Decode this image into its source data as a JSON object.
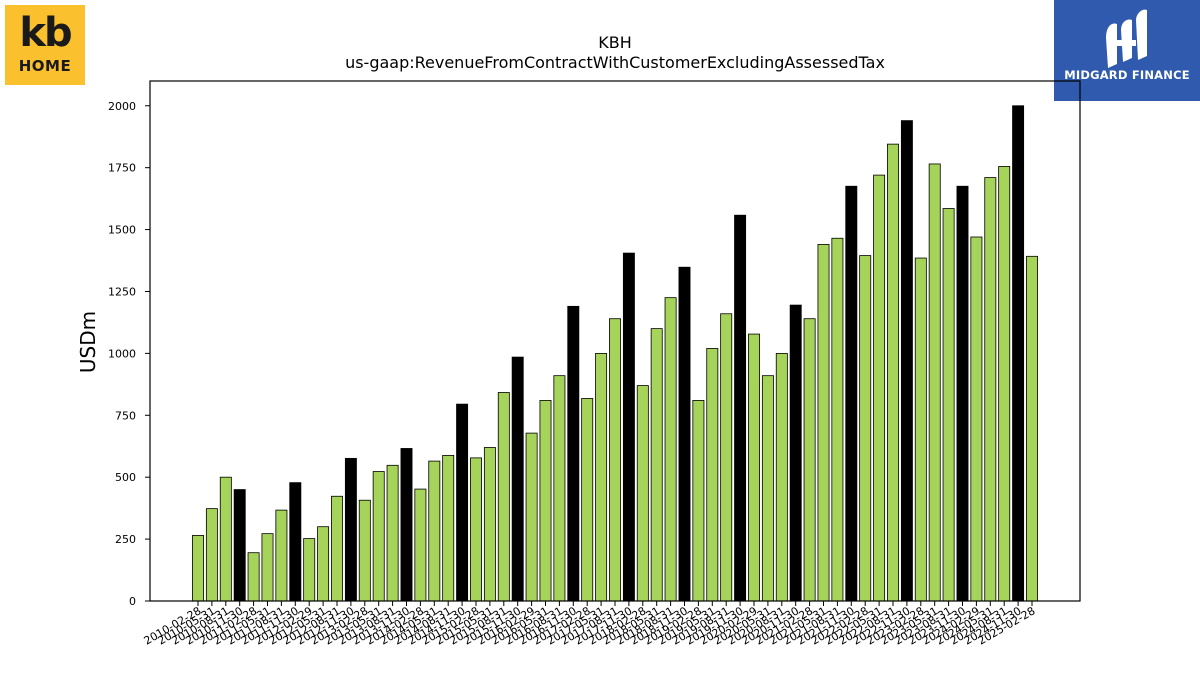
{
  "logos": {
    "left_top": "kb",
    "left_bottom": "HOME",
    "right_label": "MIDGARD FINANCE"
  },
  "colors": {
    "bar_green": "#a6d45a",
    "bar_black": "#000000",
    "kb_logo_bg": "#fbc02d",
    "midgard_bg": "#2f5aad"
  },
  "chart_data": {
    "type": "bar",
    "title": "KBH",
    "subtitle": "us-gaap:RevenueFromContractWithCustomerExcludingAssessedTax",
    "ylabel": "USDm",
    "xlabel": "",
    "ylim": [
      0,
      2100
    ],
    "yticks": [
      0,
      250,
      500,
      750,
      1000,
      1250,
      1500,
      1750,
      2000
    ],
    "grid": false,
    "categories": [
      "2010-02-28",
      "2010-05-31",
      "2010-08-31",
      "2010-11-30",
      "2011-02-28",
      "2011-05-31",
      "2011-08-31",
      "2011-11-30",
      "2012-02-29",
      "2012-05-31",
      "2012-08-31",
      "2012-11-30",
      "2013-02-28",
      "2013-05-31",
      "2013-08-31",
      "2013-11-30",
      "2014-02-28",
      "2014-05-31",
      "2014-08-31",
      "2014-11-30",
      "2015-02-28",
      "2015-05-31",
      "2015-08-31",
      "2015-11-30",
      "2016-02-29",
      "2016-05-31",
      "2016-08-31",
      "2016-11-30",
      "2017-02-28",
      "2017-05-31",
      "2017-08-31",
      "2017-11-30",
      "2018-02-28",
      "2018-05-31",
      "2018-08-31",
      "2018-11-30",
      "2019-02-28",
      "2019-05-31",
      "2019-08-31",
      "2019-11-30",
      "2020-02-29",
      "2020-05-31",
      "2020-08-31",
      "2020-11-30",
      "2021-02-28",
      "2021-05-31",
      "2021-08-31",
      "2021-11-30",
      "2022-02-28",
      "2022-05-31",
      "2022-08-31",
      "2022-11-30",
      "2023-02-28",
      "2023-05-31",
      "2023-08-31",
      "2023-11-30",
      "2024-02-29",
      "2024-05-31",
      "2024-08-31",
      "2024-11-30",
      "2025-02-28"
    ],
    "values": [
      265,
      373,
      500,
      450,
      195,
      272,
      367,
      478,
      252,
      300,
      423,
      576,
      407,
      523,
      548,
      616,
      452,
      565,
      588,
      795,
      578,
      620,
      842,
      985,
      678,
      810,
      910,
      1190,
      818,
      1000,
      1140,
      1405,
      870,
      1100,
      1225,
      1348,
      810,
      1020,
      1160,
      1558,
      1078,
      910,
      1000,
      1195,
      1140,
      1440,
      1465,
      1675,
      1395,
      1720,
      1845,
      1940,
      1385,
      1765,
      1585,
      1675,
      1470,
      1710,
      1755,
      2000,
      1392
    ],
    "highlight": [
      false,
      false,
      false,
      true,
      false,
      false,
      false,
      true,
      false,
      false,
      false,
      true,
      false,
      false,
      false,
      true,
      false,
      false,
      false,
      true,
      false,
      false,
      false,
      true,
      false,
      false,
      false,
      true,
      false,
      false,
      false,
      true,
      false,
      false,
      false,
      true,
      false,
      false,
      false,
      true,
      false,
      false,
      false,
      true,
      false,
      false,
      false,
      true,
      false,
      false,
      false,
      true,
      false,
      false,
      false,
      true,
      false,
      false,
      false,
      true,
      false
    ]
  }
}
